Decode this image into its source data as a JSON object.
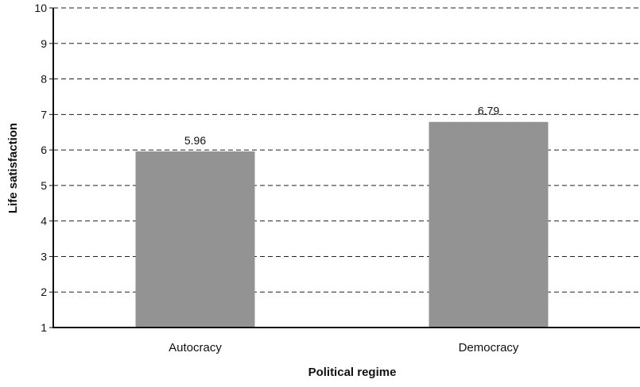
{
  "chart_data": {
    "type": "bar",
    "categories": [
      "Autocracy",
      "Democracy"
    ],
    "values": [
      5.96,
      6.79
    ],
    "data_labels": [
      "5.96",
      "6.79"
    ],
    "xlabel": "Political regime",
    "ylabel": "Life satisfaction",
    "ylim": [
      1,
      10
    ],
    "yticks": [
      1,
      2,
      3,
      4,
      5,
      6,
      7,
      8,
      9,
      10
    ],
    "grid": true,
    "bar_color": "#939393",
    "axis_color": "#111111"
  }
}
